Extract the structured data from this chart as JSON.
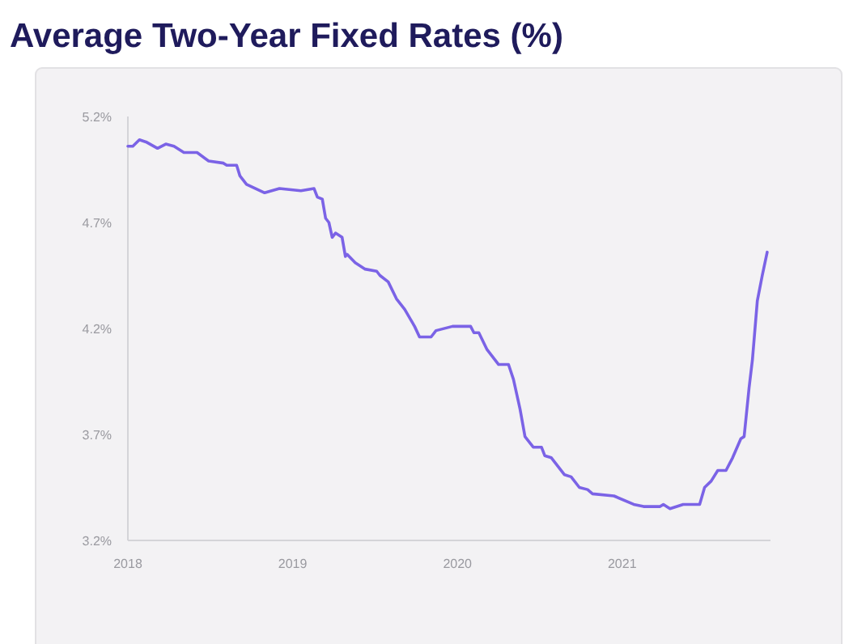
{
  "chart_data": {
    "type": "line",
    "title": "Average Two-Year Fixed Rates (%)",
    "x": [
      2018.0,
      2018.03,
      2018.07,
      2018.11,
      2018.18,
      2018.23,
      2018.28,
      2018.34,
      2018.42,
      2018.49,
      2018.58,
      2018.6,
      2018.66,
      2018.68,
      2018.72,
      2018.83,
      2018.92,
      2019.05,
      2019.13,
      2019.15,
      2019.18,
      2019.2,
      2019.22,
      2019.24,
      2019.26,
      2019.3,
      2019.32,
      2019.33,
      2019.38,
      2019.44,
      2019.51,
      2019.53,
      2019.58,
      2019.63,
      2019.68,
      2019.74,
      2019.77,
      2019.84,
      2019.87,
      2019.97,
      2020.08,
      2020.1,
      2020.13,
      2020.18,
      2020.25,
      2020.31,
      2020.34,
      2020.38,
      2020.41,
      2020.46,
      2020.51,
      2020.53,
      2020.57,
      2020.65,
      2020.69,
      2020.74,
      2020.79,
      2020.82,
      2020.95,
      2021.07,
      2021.13,
      2021.23,
      2021.25,
      2021.29,
      2021.37,
      2021.47,
      2021.5,
      2021.54,
      2021.58,
      2021.63,
      2021.67,
      2021.72,
      2021.74,
      2021.77,
      2021.79,
      2021.82,
      2021.85,
      2021.88
    ],
    "series": [
      {
        "color": "#7b63e6",
        "values": [
          5.06,
          5.06,
          5.09,
          5.08,
          5.05,
          5.07,
          5.06,
          5.03,
          5.03,
          4.99,
          4.98,
          4.97,
          4.97,
          4.92,
          4.88,
          4.84,
          4.86,
          4.85,
          4.86,
          4.82,
          4.81,
          4.72,
          4.7,
          4.63,
          4.65,
          4.63,
          4.54,
          4.55,
          4.51,
          4.48,
          4.47,
          4.45,
          4.42,
          4.34,
          4.29,
          4.21,
          4.16,
          4.16,
          4.19,
          4.21,
          4.21,
          4.18,
          4.18,
          4.1,
          4.03,
          4.03,
          3.96,
          3.82,
          3.69,
          3.64,
          3.64,
          3.6,
          3.59,
          3.51,
          3.5,
          3.45,
          3.44,
          3.42,
          3.41,
          3.37,
          3.36,
          3.36,
          3.37,
          3.35,
          3.37,
          3.37,
          3.45,
          3.48,
          3.53,
          3.53,
          3.59,
          3.68,
          3.69,
          3.92,
          4.05,
          4.33,
          4.45,
          4.56
        ]
      }
    ],
    "xlim": [
      2018,
      2021.9
    ],
    "xticks": [
      2018,
      2019,
      2020,
      2021
    ],
    "ylim": [
      3.2,
      5.2
    ],
    "yticks": [
      {
        "value": 3.2,
        "label": "3.2%"
      },
      {
        "value": 3.7,
        "label": "3.7%"
      },
      {
        "value": 4.2,
        "label": "4.2%"
      },
      {
        "value": 4.7,
        "label": "4.7%"
      },
      {
        "value": 5.2,
        "label": "5.2%"
      }
    ],
    "grid": false,
    "marker": "none",
    "line_style": "solid"
  }
}
